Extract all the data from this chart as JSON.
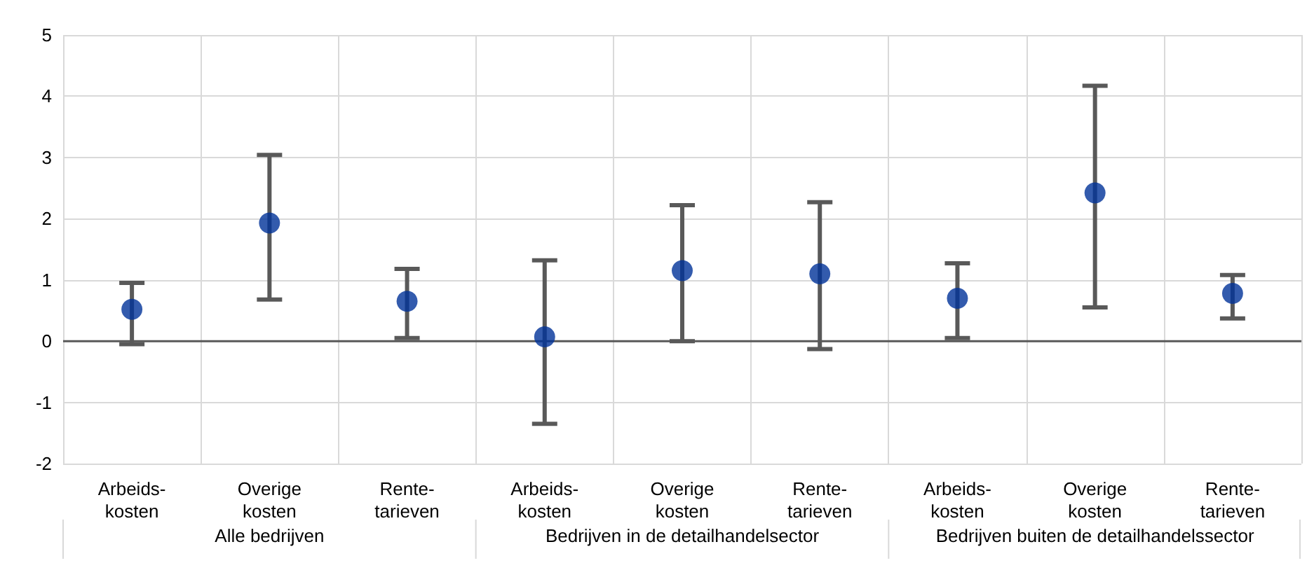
{
  "chart_data": {
    "type": "scatter",
    "categories": [
      "Arbeids-\nkosten",
      "Overige\nkosten",
      "Rente-\ntarieven",
      "Arbeids-\nkosten",
      "Overige\nkosten",
      "Rente-\ntarieven",
      "Arbeids-\nkosten",
      "Overige\nkosten",
      "Rente-\ntarieven"
    ],
    "values": [
      0.52,
      1.93,
      0.65,
      0.07,
      1.15,
      1.1,
      0.7,
      2.42,
      0.78
    ],
    "errors": [
      [
        -0.05,
        0.95
      ],
      [
        0.68,
        3.04
      ],
      [
        0.05,
        1.18
      ],
      [
        -1.35,
        1.32
      ],
      [
        0.0,
        2.22
      ],
      [
        -0.13,
        2.27
      ],
      [
        0.05,
        1.27
      ],
      [
        0.55,
        4.17
      ],
      [
        0.37,
        1.08
      ]
    ],
    "color": "#003299",
    "marker": "circle",
    "grid": true,
    "ylim": [
      -2,
      5
    ],
    "yticks": [
      -2,
      -1,
      0,
      1,
      2,
      3,
      4,
      5
    ],
    "annotations": [
      "Alle bedrijven",
      "Bedrijven in de detailhandelsector",
      "Bedrijven buiten de detailhandelssector"
    ]
  }
}
